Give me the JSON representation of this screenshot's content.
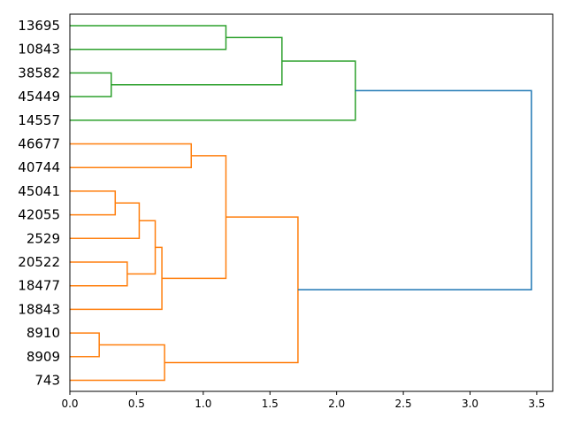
{
  "chart_data": {
    "type": "dendrogram",
    "orientation": "right",
    "xlim": [
      0,
      3.62
    ],
    "x_ticks": [
      "0.0",
      "0.5",
      "1.0",
      "1.5",
      "2.0",
      "2.5",
      "3.0",
      "3.5"
    ],
    "leaves": [
      "13695",
      "10843",
      "38582",
      "45449",
      "14557",
      "46677",
      "40744",
      "45041",
      "42055",
      "2529",
      "20522",
      "18477",
      "18843",
      "8910",
      "8909",
      "743"
    ],
    "colors": {
      "cluster_1": "#2ca02c",
      "cluster_2": "#ff7f0e",
      "root": "#1f77b4"
    },
    "merges": [
      {
        "id": "m1",
        "children": [
          "13695",
          "10843"
        ],
        "height": 1.17,
        "color": "cluster_1"
      },
      {
        "id": "m2",
        "children": [
          "38582",
          "45449"
        ],
        "height": 0.31,
        "color": "cluster_1"
      },
      {
        "id": "m3",
        "children": [
          "m1",
          "m2"
        ],
        "height": 1.59,
        "color": "cluster_1"
      },
      {
        "id": "m4",
        "children": [
          "m3",
          "14557"
        ],
        "height": 2.14,
        "color": "cluster_1"
      },
      {
        "id": "m5",
        "children": [
          "46677",
          "40744"
        ],
        "height": 0.91,
        "color": "cluster_2"
      },
      {
        "id": "m6",
        "children": [
          "45041",
          "42055"
        ],
        "height": 0.34,
        "color": "cluster_2"
      },
      {
        "id": "m7",
        "children": [
          "m6",
          "2529"
        ],
        "height": 0.52,
        "color": "cluster_2"
      },
      {
        "id": "m8",
        "children": [
          "20522",
          "18477"
        ],
        "height": 0.43,
        "color": "cluster_2"
      },
      {
        "id": "m9",
        "children": [
          "m7",
          "m8"
        ],
        "height": 0.64,
        "color": "cluster_2"
      },
      {
        "id": "m10",
        "children": [
          "m9",
          "18843"
        ],
        "height": 0.69,
        "color": "cluster_2"
      },
      {
        "id": "m11",
        "children": [
          "m5",
          "m10"
        ],
        "height": 1.17,
        "color": "cluster_2"
      },
      {
        "id": "m12",
        "children": [
          "8910",
          "8909"
        ],
        "height": 0.22,
        "color": "cluster_2"
      },
      {
        "id": "m13",
        "children": [
          "m12",
          "743"
        ],
        "height": 0.71,
        "color": "cluster_2"
      },
      {
        "id": "m14",
        "children": [
          "m11",
          "m13"
        ],
        "height": 1.71,
        "color": "cluster_2"
      },
      {
        "id": "m15",
        "children": [
          "m4",
          "m14"
        ],
        "height": 3.46,
        "color": "root"
      }
    ]
  }
}
